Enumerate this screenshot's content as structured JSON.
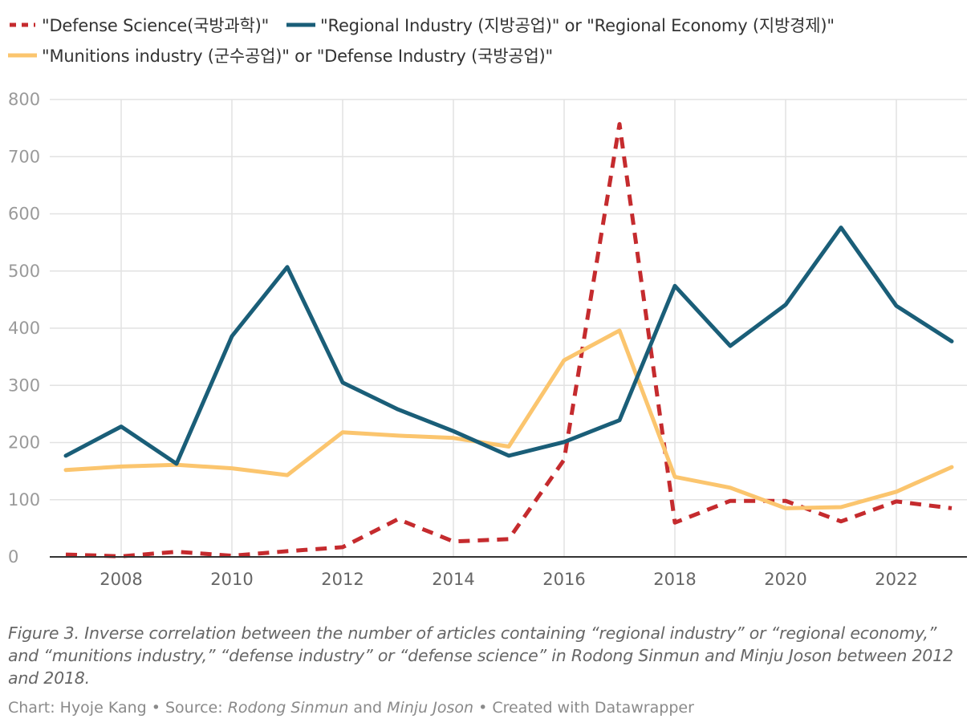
{
  "legend": {
    "defense_science": "\"Defense Science(국방과학)\"",
    "regional": "\"Regional Industry (지방공업)\" or \"Regional Economy (지방경제)\"",
    "munitions": "\"Munitions industry (군수공업)\" or \"Defense Industry (국방공업)\""
  },
  "colors": {
    "defense_science": "#c52b2e",
    "regional": "#1a5e78",
    "munitions": "#fbc56e",
    "grid": "#e2e2e2",
    "axis": "#333333"
  },
  "chart_data": {
    "type": "line",
    "x": [
      2007,
      2008,
      2009,
      2010,
      2011,
      2012,
      2013,
      2014,
      2015,
      2016,
      2017,
      2018,
      2019,
      2020,
      2021,
      2022,
      2023
    ],
    "x_ticks": [
      "2008",
      "2010",
      "2012",
      "2014",
      "2016",
      "2018",
      "2020",
      "2022"
    ],
    "y_ticks": [
      "0",
      "100",
      "200",
      "300",
      "400",
      "500",
      "600",
      "700",
      "800"
    ],
    "ylim": [
      0,
      800
    ],
    "xlim": [
      2007,
      2023
    ],
    "series": [
      {
        "key": "defense_science",
        "name": "\"Defense Science(국방과학)\"",
        "style": "dashed",
        "values": [
          4,
          1,
          9,
          2,
          10,
          17,
          66,
          27,
          31,
          170,
          757,
          60,
          98,
          98,
          62,
          97,
          85
        ]
      },
      {
        "key": "munitions",
        "name": "\"Munitions industry (군수공업)\" or \"Defense Industry (국방공업)\"",
        "style": "solid",
        "values": [
          152,
          158,
          161,
          155,
          143,
          218,
          212,
          208,
          193,
          344,
          396,
          140,
          121,
          85,
          87,
          114,
          157
        ]
      },
      {
        "key": "regional",
        "name": "\"Regional Industry (지방공업)\" or \"Regional Economy (지방경제)\"",
        "style": "solid",
        "values": [
          177,
          228,
          163,
          386,
          507,
          305,
          258,
          220,
          177,
          201,
          239,
          474,
          369,
          441,
          576,
          439,
          377
        ]
      }
    ]
  },
  "caption": "Figure 3. Inverse correlation between the number of articles containing “regional industry” or “regional economy,” and “munitions industry,” “defense industry” or “defense science” in Rodong Sinmun and Minju Joson between 2012 and 2018.",
  "credits": {
    "prefix": "Chart: Hyoje Kang • Source: ",
    "source1": "Rodong Sinmun",
    "and": " and ",
    "source2": "Minju Joson",
    "suffix": " • Created with Datawrapper"
  }
}
